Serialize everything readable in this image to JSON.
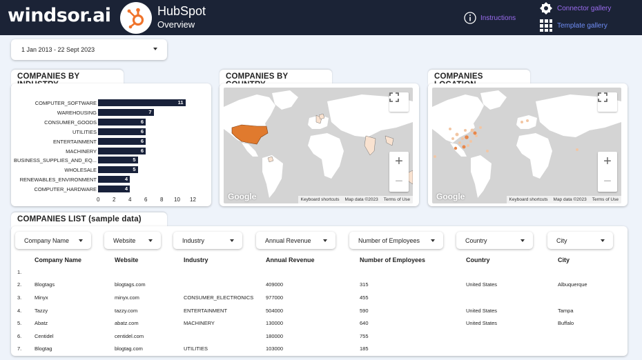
{
  "brand": {
    "logo": "windsor.ai"
  },
  "header": {
    "title": "HubSpot",
    "subtitle": "Overview",
    "instructions": "Instructions",
    "connector_gallery": "Connector gallery",
    "template_gallery": "Template gallery"
  },
  "date_range": "1 Jan 2013 - 22 Sept 2023",
  "industry_panel": {
    "title": "COMPANIES BY INDUSTRY"
  },
  "chart_data": {
    "type": "bar",
    "orientation": "horizontal",
    "categories": [
      "COMPUTER_SOFTWARE",
      "WAREHOUSING",
      "CONSUMER_GOODS",
      "UTILITIES",
      "ENTERTAINMENT",
      "MACHINERY",
      "BUSINESS_SUPPLIES_AND_EQ...",
      "WHOLESALE",
      "RENEWABLES_ENVIRONMENT",
      "COMPUTER_HARDWARE"
    ],
    "values": [
      11,
      7,
      6,
      6,
      6,
      6,
      5,
      5,
      4,
      4
    ],
    "xticks": [
      "0",
      "2",
      "4",
      "6",
      "8",
      "10",
      "12"
    ],
    "xlim": [
      0,
      12
    ],
    "bar_color": "#18213a",
    "grid": false
  },
  "country_panel": {
    "title": "COMPANIES BY COUNTRY",
    "highlight_color": "#e07a2e"
  },
  "location_panel": {
    "title": "COMPANIES LOCATION"
  },
  "map": {
    "keyboard": "Keyboard shortcuts",
    "data": "Map data ©2023",
    "terms": "Terms of Use",
    "google": "Google",
    "zoom_in": "+",
    "zoom_out": "−"
  },
  "list_panel": {
    "title": "COMPANIES LIST (sample data)"
  },
  "filters": [
    "Company Name",
    "Website",
    "Industry",
    "Annual Revenue",
    "Number of Employees",
    "Country",
    "City"
  ],
  "table": {
    "columns": [
      "Company Name",
      "Website",
      "Industry",
      "Annual Revenue",
      "Number of Employees",
      "Country",
      "City"
    ],
    "rows": [
      {
        "n": "1.",
        "name": "",
        "web": "",
        "ind": "",
        "rev": "",
        "emp": "",
        "country": "",
        "city": ""
      },
      {
        "n": "2.",
        "name": "Blogtags",
        "web": "blogtags.com",
        "ind": "",
        "rev": "409000",
        "emp": "315",
        "country": "United States",
        "city": "Albuquerque"
      },
      {
        "n": "3.",
        "name": "Minyx",
        "web": "minyx.com",
        "ind": "CONSUMER_ELECTRONICS",
        "rev": "977000",
        "emp": "455",
        "country": "",
        "city": ""
      },
      {
        "n": "4.",
        "name": "Tazzy",
        "web": "tazzy.com",
        "ind": "ENTERTAINMENT",
        "rev": "504000",
        "emp": "590",
        "country": "United States",
        "city": "Tampa"
      },
      {
        "n": "5.",
        "name": "Abatz",
        "web": "abatz.com",
        "ind": "MACHINERY",
        "rev": "130000",
        "emp": "640",
        "country": "United States",
        "city": "Buffalo"
      },
      {
        "n": "6.",
        "name": "Centidel",
        "web": "centidel.com",
        "ind": "",
        "rev": "180000",
        "emp": "755",
        "country": "",
        "city": ""
      },
      {
        "n": "7.",
        "name": "Blogtag",
        "web": "blogtag.com",
        "ind": "UTILITIES",
        "rev": "103000",
        "emp": "185",
        "country": "",
        "city": ""
      }
    ]
  }
}
